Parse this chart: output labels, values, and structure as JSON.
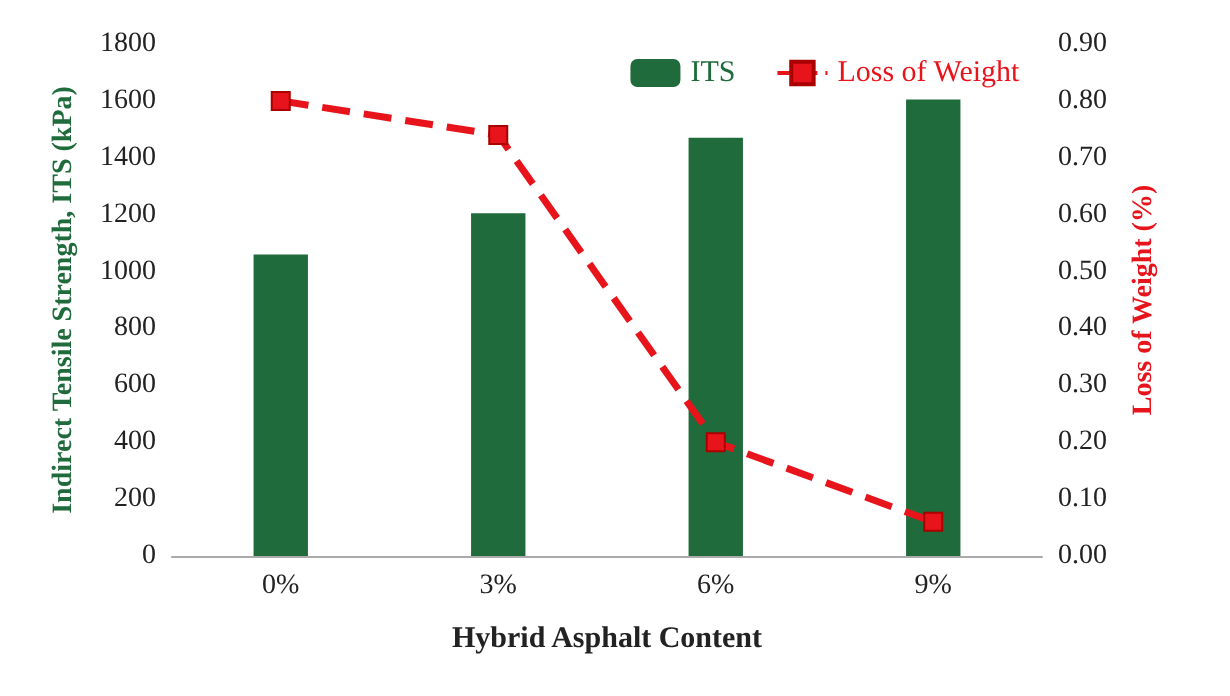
{
  "chart_data": {
    "type": "bar",
    "xlabel": "Hybrid Asphalt Content",
    "ylabel": "Indirect Tensile Strength, ITS (kPa)",
    "y2label": "Loss of Weight (%)",
    "categories": [
      "0%",
      "3%",
      "6%",
      "9%"
    ],
    "series": [
      {
        "name": "ITS",
        "color": "#1f6b3c",
        "values": [
          1060,
          1205,
          1470,
          1605
        ]
      },
      {
        "name": "Loss of Weight",
        "type": "line",
        "axis": "y2",
        "color": "#e8141c",
        "marker": "square",
        "line_style": "dashed",
        "values": [
          0.8,
          0.74,
          0.2,
          0.06
        ]
      }
    ],
    "ylim": [
      0,
      1800
    ],
    "yticks": [
      0,
      200,
      400,
      600,
      800,
      1000,
      1200,
      1400,
      1600,
      1800
    ],
    "y2lim": [
      0,
      0.9
    ],
    "y2ticks": [
      {
        "value": 0,
        "label": "0.00"
      },
      {
        "value": 0.1,
        "label": "0.10"
      },
      {
        "value": 0.2,
        "label": "0.20"
      },
      {
        "value": 0.3,
        "label": "0.30"
      },
      {
        "value": 0.4,
        "label": "0.40"
      },
      {
        "value": 0.5,
        "label": "0.50"
      },
      {
        "value": 0.6,
        "label": "0.60"
      },
      {
        "value": 0.7,
        "label": "0.70"
      },
      {
        "value": 0.8,
        "label": "0.80"
      },
      {
        "value": 0.9,
        "label": "0.90"
      }
    ],
    "grid": false,
    "legend": "top right"
  }
}
